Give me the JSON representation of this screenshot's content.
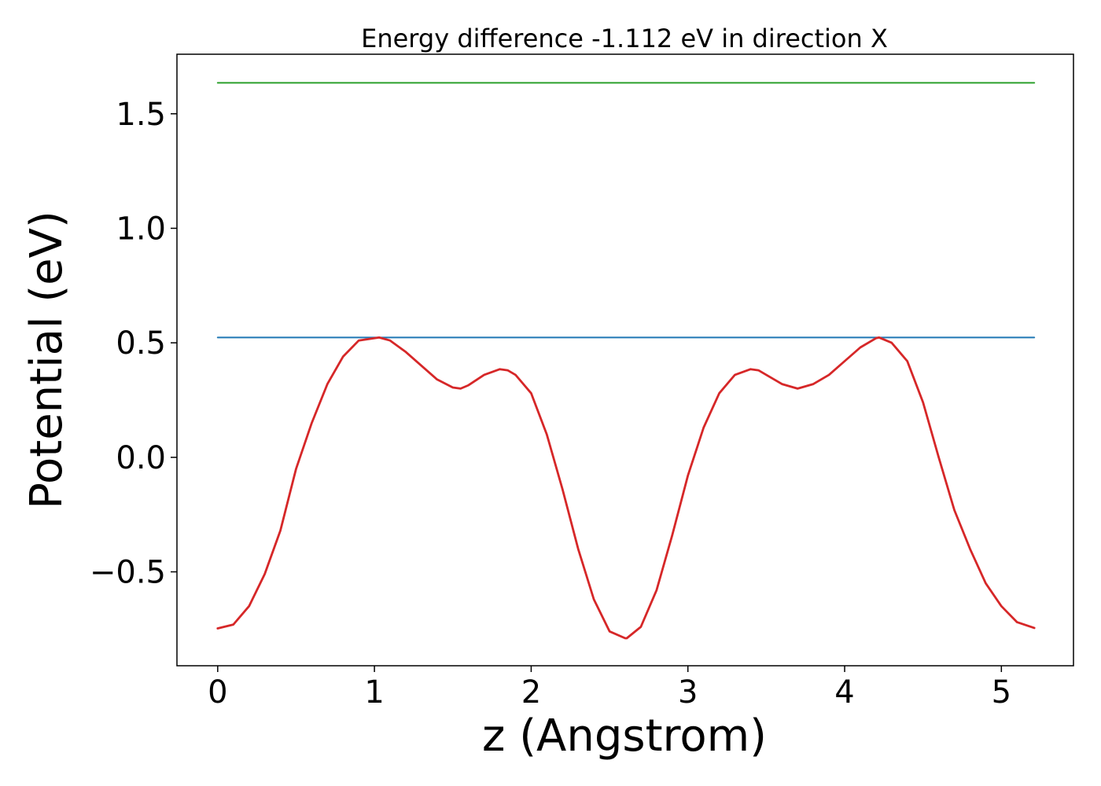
{
  "chart_data": {
    "type": "line",
    "title": "Energy difference -1.112 eV in direction X",
    "xlabel": "z (Angstrom)",
    "ylabel": "Potential (eV)",
    "xlim": [
      -0.26,
      5.46
    ],
    "ylim": [
      -0.91,
      1.76
    ],
    "xticks": [
      0,
      1,
      2,
      3,
      4,
      5
    ],
    "xtick_labels": [
      "0",
      "1",
      "2",
      "3",
      "4",
      "5"
    ],
    "yticks": [
      -0.5,
      0.0,
      0.5,
      1.0,
      1.5
    ],
    "ytick_labels": [
      "−0.5",
      "0.0",
      "0.5",
      "1.0",
      "1.5"
    ],
    "grid": false,
    "legend": "none",
    "series": [
      {
        "color": "#2ca02c",
        "x": [
          0,
          5.21
        ],
        "y": [
          1.635,
          1.635
        ]
      },
      {
        "color": "#1f77b4",
        "x": [
          0,
          5.21
        ],
        "y": [
          0.523,
          0.523
        ]
      },
      {
        "color": "#d62728",
        "x": [
          0,
          0.1,
          0.2,
          0.3,
          0.4,
          0.5,
          0.6,
          0.7,
          0.8,
          0.9,
          1.0,
          1.03,
          1.1,
          1.2,
          1.3,
          1.4,
          1.5,
          1.55,
          1.6,
          1.7,
          1.8,
          1.85,
          1.9,
          2.0,
          2.1,
          2.2,
          2.3,
          2.4,
          2.5,
          2.6,
          2.61,
          2.7,
          2.8,
          2.9,
          3.0,
          3.1,
          3.2,
          3.3,
          3.4,
          3.45,
          3.5,
          3.6,
          3.7,
          3.8,
          3.9,
          4.0,
          4.1,
          4.2,
          4.22,
          4.3,
          4.4,
          4.5,
          4.6,
          4.7,
          4.8,
          4.9,
          5.0,
          5.1,
          5.21
        ],
        "y": [
          -0.747,
          -0.73,
          -0.65,
          -0.51,
          -0.32,
          -0.05,
          0.15,
          0.32,
          0.44,
          0.51,
          0.52,
          0.523,
          0.51,
          0.46,
          0.4,
          0.34,
          0.305,
          0.3,
          0.315,
          0.36,
          0.385,
          0.38,
          0.36,
          0.28,
          0.1,
          -0.14,
          -0.4,
          -0.62,
          -0.76,
          -0.79,
          -0.79,
          -0.74,
          -0.58,
          -0.34,
          -0.08,
          0.13,
          0.28,
          0.36,
          0.385,
          0.38,
          0.36,
          0.32,
          0.3,
          0.32,
          0.36,
          0.42,
          0.48,
          0.52,
          0.523,
          0.5,
          0.42,
          0.24,
          0.0,
          -0.23,
          -0.4,
          -0.55,
          -0.65,
          -0.72,
          -0.745
        ]
      }
    ]
  }
}
